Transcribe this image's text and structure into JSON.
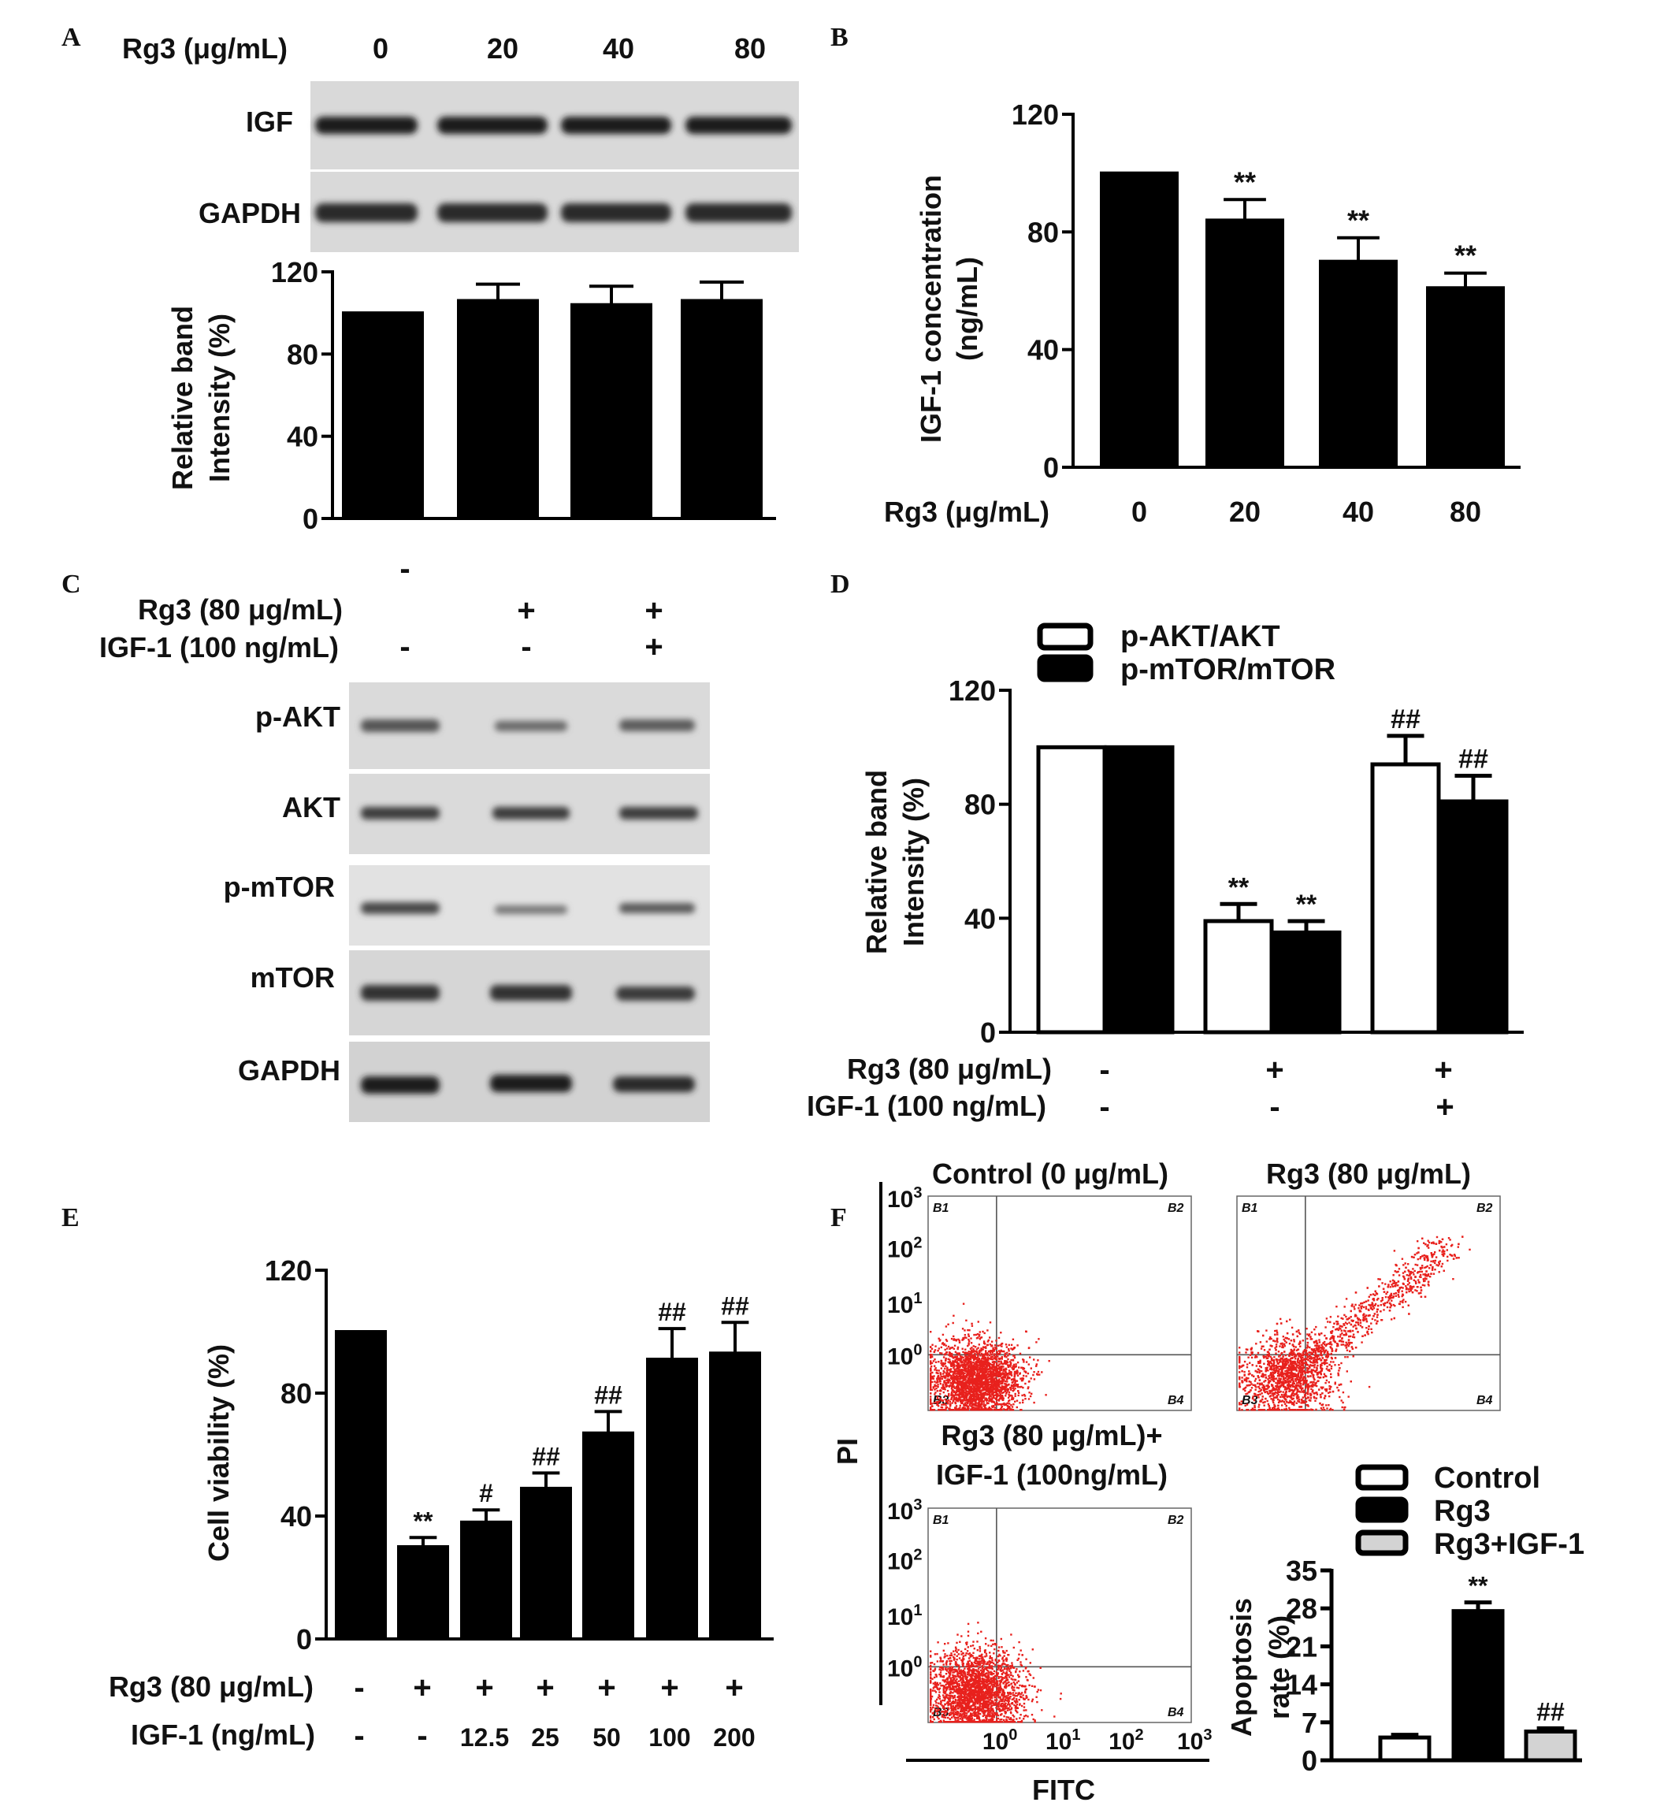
{
  "panels": {
    "A": {
      "letter": "A",
      "header_label": "Rg3 (μg/mL)",
      "lanes": [
        "0",
        "20",
        "40",
        "80"
      ],
      "blots": [
        "IGF",
        "GAPDH"
      ],
      "ylabel_line1": "Relative band",
      "ylabel_line2": "Intensity (%)"
    },
    "B": {
      "letter": "B",
      "xlabel": "Rg3 (μg/mL)",
      "ylabel_line1": "IGF-1 concentration",
      "ylabel_line2": "(ng/mL)"
    },
    "C": {
      "letter": "C",
      "row1_label": "Rg3 (80 μg/mL)",
      "row2_label": "IGF-1 (100 ng/mL)",
      "row1_signs": [
        "-",
        "+",
        "+"
      ],
      "row2_signs": [
        "-",
        "-",
        "+"
      ],
      "blots": [
        "p-AKT",
        "AKT",
        "p-mTOR",
        "mTOR",
        "GAPDH"
      ]
    },
    "D": {
      "letter": "D",
      "ylabel_line1": "Relative band",
      "ylabel_line2": "Intensity (%)",
      "row1_label": "Rg3 (80 μg/mL)",
      "row2_label": "IGF-1 (100 ng/mL)",
      "row1_signs": [
        "-",
        "+",
        "+"
      ],
      "row2_signs": [
        "-",
        "-",
        "+"
      ]
    },
    "E": {
      "letter": "E",
      "ylabel": "Cell viability (%)",
      "row1_label": "Rg3 (80 μg/mL)",
      "row2_label": "IGF-1 (ng/mL)",
      "row1_signs": [
        "-",
        "+",
        "+",
        "+",
        "+",
        "+",
        "+"
      ],
      "row2_values": [
        "-",
        "-",
        "12.5",
        "25",
        "50",
        "100",
        "200"
      ]
    },
    "F": {
      "letter": "F",
      "plot_titles": [
        "Control (0 μg/mL)",
        "Rg3 (80 μg/mL)",
        "Rg3 (80 μg/mL)+",
        "IGF-1 (100ng/mL)"
      ],
      "y_axis_label": "PI",
      "x_axis_label": "FITC",
      "log_ticks": [
        "10",
        "10",
        "10",
        "10"
      ],
      "log_exponents": [
        "0",
        "1",
        "2",
        "3"
      ],
      "quadrants": [
        "B1",
        "B2",
        "B3",
        "B4"
      ],
      "bar_ylabel_line1": "Apoptosis",
      "bar_ylabel_line2": "rate (%)"
    }
  },
  "colors": {
    "black_bar": "#000000",
    "white_bar": "#ffffff",
    "gray_bar": "#d3d3d3",
    "dots": "#e8211d",
    "blot_bg": "#d9d9d9",
    "band": "#3a3a3a"
  },
  "chart_data": [
    {
      "panel": "A",
      "type": "bar",
      "categories": [
        "0",
        "20",
        "40",
        "80"
      ],
      "values": [
        100,
        106,
        104,
        106
      ],
      "errors": [
        0,
        8,
        9,
        9
      ],
      "ylim": [
        0,
        120
      ],
      "yticks": [
        0,
        40,
        80,
        120
      ],
      "xlabel": "",
      "ylabel": "Relative band Intensity (%)"
    },
    {
      "panel": "B",
      "type": "bar",
      "categories": [
        "0",
        "20",
        "40",
        "80"
      ],
      "values": [
        100,
        84,
        70,
        61
      ],
      "errors": [
        0,
        7,
        8,
        5
      ],
      "significance": [
        "",
        "**",
        "**",
        "**"
      ],
      "ylim": [
        0,
        120
      ],
      "yticks": [
        0,
        40,
        80,
        120
      ],
      "xlabel": "Rg3 (μg/mL)",
      "ylabel": "IGF-1 concentration (ng/mL)"
    },
    {
      "panel": "D",
      "type": "bar",
      "categories": [
        "-/-",
        "+/-",
        "+/+"
      ],
      "series": [
        {
          "name": "p-AKT/AKT",
          "values": [
            100,
            39,
            94
          ],
          "errors": [
            0,
            6,
            10
          ],
          "significance": [
            "",
            "**",
            "##"
          ]
        },
        {
          "name": "p-mTOR/mTOR",
          "values": [
            100,
            35,
            81
          ],
          "errors": [
            0,
            4,
            9
          ],
          "significance": [
            "",
            "**",
            "##"
          ]
        }
      ],
      "legend": "top",
      "ylim": [
        0,
        120
      ],
      "yticks": [
        0,
        40,
        80,
        120
      ],
      "ylabel": "Relative band Intensity (%)"
    },
    {
      "panel": "E",
      "type": "bar",
      "categories": [
        "-/-",
        "+/-",
        "+/12.5",
        "+/25",
        "+/50",
        "+/100",
        "+/200"
      ],
      "values": [
        100,
        30,
        38,
        49,
        67,
        91,
        93
      ],
      "errors": [
        0,
        3,
        4,
        5,
        7,
        10,
        10
      ],
      "significance": [
        "",
        "**",
        "#",
        "##",
        "##",
        "##",
        "##"
      ],
      "ylim": [
        0,
        120
      ],
      "yticks": [
        0,
        40,
        80,
        120
      ],
      "ylabel": "Cell viability (%)"
    },
    {
      "panel": "F",
      "type": "bar",
      "categories": [
        "Control",
        "Rg3",
        "Rg3+IGF-1"
      ],
      "values": [
        4.2,
        27.5,
        5.3
      ],
      "errors": [
        0.5,
        1.6,
        0.6
      ],
      "significance": [
        "",
        "**",
        "##"
      ],
      "legend": [
        "Control",
        "Rg3",
        "Rg3+IGF-1"
      ],
      "ylim": [
        0,
        35
      ],
      "yticks": [
        0,
        7,
        14,
        21,
        28,
        35
      ],
      "ylabel": "Apoptosis rate (%)"
    }
  ]
}
